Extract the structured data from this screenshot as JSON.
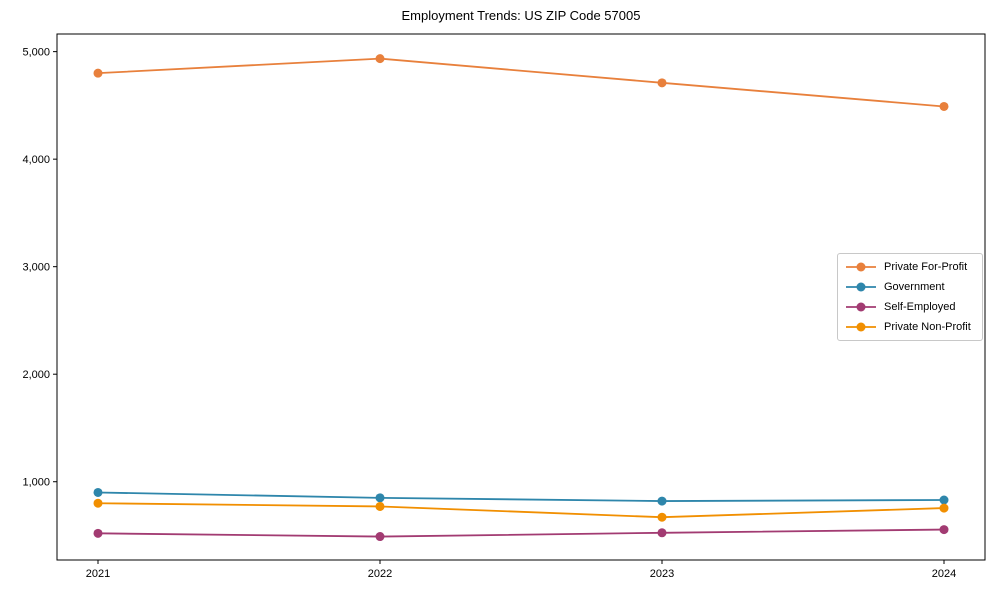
{
  "figure": {
    "background_color": "#ffffff",
    "axis_color": "#000000",
    "text_color": "#000000",
    "legend_border_color": "#c8c8c8"
  },
  "chart_data": {
    "type": "line",
    "title": "Employment Trends: US ZIP Code 57005",
    "xlabel": "",
    "ylabel": "",
    "categories": [
      "2021",
      "2022",
      "2023",
      "2024"
    ],
    "series": [
      {
        "name": "Private For-Profit",
        "color": "#e8803c",
        "marker": "circle",
        "values": [
          4800,
          4935,
          4710,
          4490
        ]
      },
      {
        "name": "Government",
        "color": "#2e86ab",
        "marker": "circle",
        "values": [
          900,
          850,
          820,
          830
        ]
      },
      {
        "name": "Self-Employed",
        "color": "#a23b72",
        "marker": "circle",
        "values": [
          520,
          490,
          525,
          555
        ]
      },
      {
        "name": "Private Non-Profit",
        "color": "#f18f01",
        "marker": "circle",
        "values": [
          800,
          770,
          670,
          755
        ]
      }
    ],
    "ylim": [
      272,
      5164
    ],
    "yticks": [
      1000,
      2000,
      3000,
      4000,
      5000
    ],
    "ytick_labels": [
      "1,000",
      "2,000",
      "3,000",
      "4,000",
      "5,000"
    ],
    "grid": false,
    "legend": {
      "position": "center-right",
      "entries": [
        "Private For-Profit",
        "Government",
        "Self-Employed",
        "Private Non-Profit"
      ]
    }
  }
}
